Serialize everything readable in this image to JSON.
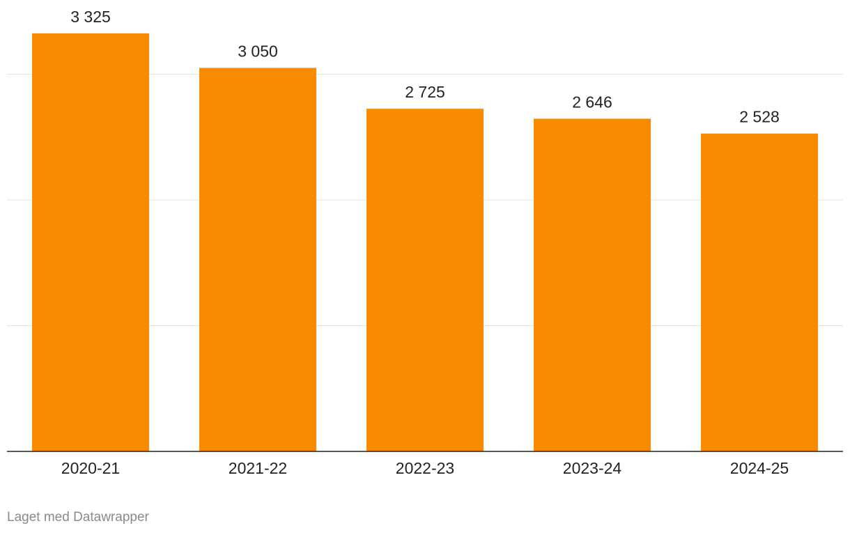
{
  "chart_data": {
    "type": "bar",
    "categories": [
      "2020-21",
      "2021-22",
      "2022-23",
      "2023-24",
      "2024-25"
    ],
    "values": [
      3325,
      3050,
      2725,
      2646,
      2528
    ],
    "value_labels": [
      "3 325",
      "3 050",
      "2 725",
      "2 646",
      "2 528"
    ],
    "ylim": [
      0,
      3000
    ],
    "gridlines": [
      1000,
      2000,
      3000
    ],
    "grid": true,
    "bar_color": "#f98b00",
    "title": "",
    "xlabel": "",
    "ylabel": ""
  },
  "footer": {
    "credit": "Laget med Datawrapper"
  }
}
